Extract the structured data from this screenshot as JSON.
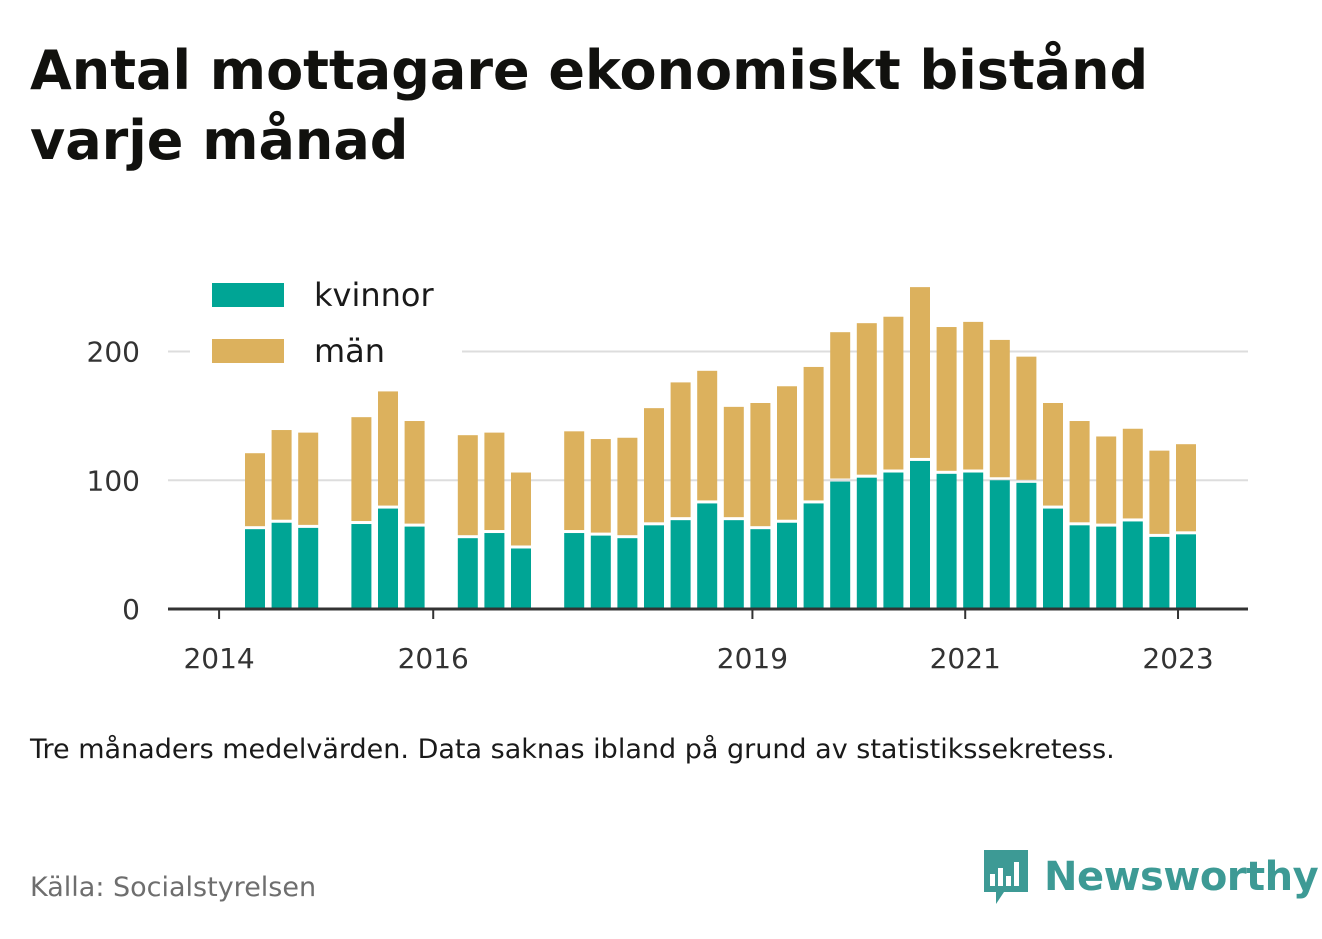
{
  "title": "Antal mottagare ekonomiskt bistånd varje månad",
  "subtitle": "Tre månaders medelvärden. Data saknas ibland på grund av statistikssekretess.",
  "source": "Källa: Socialstyrelsen",
  "brand": {
    "name": "Newsworthy",
    "icon": "bar-chart-speech-bubble-icon",
    "color": "#3d9a95"
  },
  "colors": {
    "kvinnor": "#00a595",
    "man": "#dcb15d",
    "grid": "#dddddd",
    "axis": "#333333"
  },
  "chart_data": {
    "type": "bar",
    "stacked": true,
    "xtick_labels": [
      "2014",
      "2016",
      "2019",
      "2021",
      "2023"
    ],
    "yticks": [
      0,
      100,
      200
    ],
    "ylim": [
      0,
      250
    ],
    "grid": true,
    "legend_position": "top-left",
    "series": [
      {
        "name": "kvinnor",
        "values": [
          62,
          67,
          63,
          null,
          66,
          78,
          64,
          null,
          55,
          59,
          47,
          null,
          59,
          57,
          55,
          65,
          69,
          82,
          69,
          62,
          67,
          82,
          99,
          102,
          106,
          115,
          105,
          106,
          100,
          98,
          78,
          65,
          64,
          68,
          56,
          58
        ]
      },
      {
        "name": "män",
        "values": [
          59,
          72,
          74,
          null,
          83,
          91,
          82,
          null,
          80,
          78,
          59,
          null,
          79,
          75,
          78,
          91,
          107,
          103,
          88,
          98,
          106,
          106,
          116,
          120,
          121,
          135,
          114,
          117,
          109,
          98,
          82,
          81,
          70,
          72,
          67,
          70
        ]
      }
    ]
  }
}
